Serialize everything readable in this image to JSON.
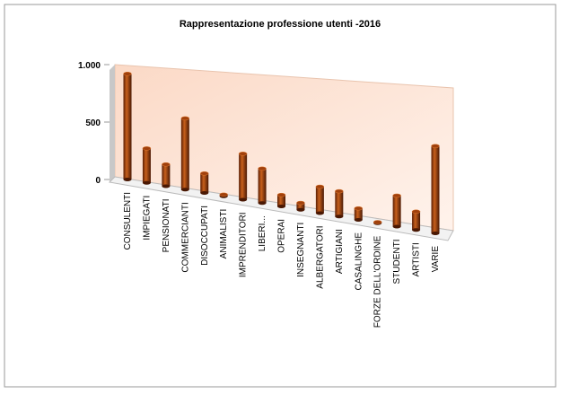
{
  "chart_data": {
    "type": "bar3d",
    "title": "Rappresentazione professione utenti -2016",
    "categories": [
      "CONSULENTI",
      "IMPIEGATI",
      "PENSIONATI",
      "COMMERCIANTI",
      "DISOCCUPATI",
      "ANIMALISTI",
      "IMPRENDITORI",
      "LIBERI...",
      "OPERAI",
      "INSEGNANTI",
      "ALBERGATORI",
      "ARTIGIANI",
      "CASALINGHE",
      "FORZE DELL'ORDINE",
      "STUDENTI",
      "ARTISTI",
      "VARIE"
    ],
    "values": [
      920,
      300,
      190,
      620,
      170,
      15,
      400,
      300,
      100,
      60,
      230,
      220,
      100,
      10,
      270,
      160,
      760
    ],
    "color": "#a0400c",
    "ylim": [
      0,
      1000
    ],
    "yticks": [
      0,
      500,
      {
        "value": 1000,
        "label": "1.000"
      }
    ]
  }
}
